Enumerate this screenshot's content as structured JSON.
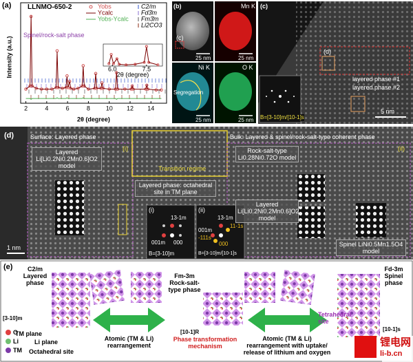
{
  "chart_data": {
    "type": "line",
    "panel_label": "(a)",
    "title": "LLNMO-650-2",
    "xlabel": "2θ (degree)",
    "ylabel": "Intensity (a.u.)",
    "xlim": [
      1.5,
      15.5
    ],
    "ylim": [
      -14,
      104
    ],
    "xticks": [
      2,
      4,
      6,
      8,
      10,
      12,
      14
    ],
    "x": [
      2,
      2.4,
      2.5,
      2.6,
      3,
      3.5,
      4,
      4.5,
      4.9,
      5.0,
      5.1,
      5.5,
      5.85,
      5.95,
      6.05,
      6.2,
      6.3,
      6.6,
      7.0,
      7.4,
      7.5,
      7.6,
      8.0,
      8.6,
      8.7,
      8.8,
      9.2,
      9.3,
      9.4,
      10,
      10.6,
      10.7,
      10.8,
      11.5,
      12.1,
      12.2,
      12.3,
      13.5,
      13.6,
      13.7,
      14.5,
      15
    ],
    "series": [
      {
        "name": "Yobs",
        "color": "#d05050",
        "marker": "circle",
        "values": [
          4,
          8,
          97,
          8,
          5,
          4,
          4,
          4,
          6,
          53,
          6,
          5,
          6,
          21,
          6,
          14,
          5,
          4,
          5,
          8,
          34,
          8,
          4,
          5,
          24,
          5,
          5,
          12,
          5,
          4,
          4,
          25,
          4,
          4,
          4,
          8,
          4,
          4,
          9,
          4,
          3,
          3
        ]
      },
      {
        "name": "Ycalc",
        "color": "#7a0000",
        "values": [
          4,
          8,
          98,
          8,
          5,
          4,
          4,
          4,
          6,
          52,
          6,
          5,
          6,
          20,
          6,
          14,
          5,
          4,
          5,
          8,
          33,
          8,
          4,
          5,
          24,
          5,
          5,
          12,
          5,
          4,
          4,
          26,
          4,
          4,
          4,
          8,
          4,
          4,
          9,
          4,
          3,
          3
        ]
      },
      {
        "name": "Yobs-Ycalc",
        "color": "#4caf50",
        "values": [
          -8,
          -8,
          -9,
          -8,
          -8,
          -8,
          -8,
          -8,
          -8,
          -7,
          -8,
          -8,
          -8,
          -7,
          -8,
          -8,
          -8,
          -8,
          -8,
          -8,
          -7,
          -8,
          -8,
          -8,
          -8,
          -8,
          -8,
          -8,
          -8,
          -8,
          -8,
          -9,
          -8,
          -8,
          -8,
          -8,
          -8,
          -8,
          -8,
          -8,
          -8,
          -8
        ]
      }
    ],
    "phases": [
      {
        "name": "C2/m",
        "color": "#3355cc"
      },
      {
        "name": "Fd3̄m",
        "color": "#8a6fd0"
      },
      {
        "name": "Fm3̄m",
        "color": "#555555"
      },
      {
        "name": "Li2CO3",
        "color": "#8b2a10"
      }
    ],
    "annotation": "Spinel/rock-salt phase",
    "inset": {
      "xlim": [
        5.6,
        8.2
      ],
      "ylim": [
        2,
        38
      ],
      "xticks": [
        {
          "value": 6,
          "label": "6.0"
        },
        {
          "value": 7.5,
          "label": "7.5"
        }
      ],
      "xlabel": "2θ (degree)"
    }
  },
  "panel_b": {
    "label": "(b)",
    "inset_label": "(c)",
    "maps": [
      "Mn K",
      "Ni K",
      "O K"
    ],
    "scale_bar": "25 nm",
    "annotation": "Segregation"
  },
  "panel_c": {
    "label": "(c)",
    "inset_label": "(d)",
    "phase_1": "layered phase #1",
    "phase_2": "layered phase #2",
    "zone_axis": "B=[3-10]m/[10-1]s",
    "scale_bar": "5 nm"
  },
  "panel_d": {
    "label": "(d)",
    "surface": "Surface: Layered phase",
    "bulk": "Bulk: Layered & spinel/rock-salt-type coherent phase",
    "region_1": "(i)",
    "region_2": "(ii)",
    "transition": "Transition regime",
    "layered_model": "Layered Li[Li0.2Ni0.2Mn0.6]O2 model",
    "rocksalt_model": "Rock-salt-type Li0.28Ni0.72O model",
    "octahedral": "Layered phase: octahedral site in TM plane",
    "spinel_model": "Spinel LiNi0.5Mn1.5O4 model",
    "fft_1": {
      "label": "(i)",
      "spots": [
        "13-1m",
        "001m",
        "000"
      ],
      "zone_axis": "B=[3-10]m"
    },
    "fft_2": {
      "label": "(ii)",
      "spots": [
        "13-1m",
        "11-1s",
        "001m",
        "-111s",
        "000"
      ],
      "zone_axis": "B=[3-10]m/[10-1]s"
    },
    "scale_bar": "1 nm"
  },
  "panel_e": {
    "label": "(e)",
    "layered": "C2/m Layered phase",
    "rocksalt": "Fm-3m Rock-salt-type phase",
    "spinel": "Fd-3m Spinel phase",
    "tetrahedral": "Tetrahedral site",
    "axis_m": "[3-10]m",
    "axis_r": "[10-1]R",
    "axis_s": "[10-1]s",
    "tm_plane": "TM plane",
    "li_plane": "Li plane",
    "octahedral": "Octahedral site",
    "legend": [
      "O",
      "Li",
      "TM"
    ],
    "step_1": "Atomic (TM & Li) rearrangement",
    "mechanism": "Phase transformation mechanism",
    "step_2": "Atomic (TM & Li) rearrangement with uptake/ release of lithium and oxygen"
  },
  "watermark": {
    "name": "锂电网",
    "url": "li-b.cn"
  }
}
